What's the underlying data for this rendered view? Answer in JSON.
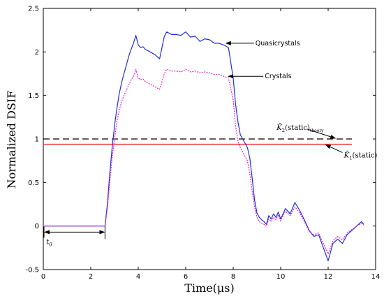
{
  "chart_data": {
    "type": "line",
    "title": "",
    "xlabel": "Time(μs)",
    "ylabel": "Normalized DSIF",
    "xlim": [
      0,
      14
    ],
    "ylim": [
      -0.5,
      2.5
    ],
    "x_ticks": [
      0,
      2,
      4,
      6,
      8,
      10,
      12,
      14
    ],
    "y_ticks": [
      -0.5,
      0,
      0.5,
      1,
      1.5,
      2,
      2.5
    ],
    "x_tick_labels": [
      "0",
      "2",
      "4",
      "6",
      "8",
      "10",
      "12",
      "14"
    ],
    "y_tick_labels": [
      "-0.5",
      "0",
      "0.5",
      "1",
      "1.5",
      "2",
      "2.5"
    ],
    "grid": false,
    "series": [
      {
        "name": "Quasicrystals",
        "color": "#1f2fd6",
        "style": "solid",
        "x": [
          0,
          2.6,
          2.7,
          2.8,
          2.9,
          3.0,
          3.1,
          3.2,
          3.3,
          3.4,
          3.5,
          3.6,
          3.7,
          3.8,
          3.9,
          4.0,
          4.1,
          4.2,
          4.3,
          4.5,
          4.7,
          4.9,
          5.0,
          5.1,
          5.2,
          5.4,
          5.6,
          5.8,
          6.0,
          6.2,
          6.4,
          6.6,
          6.8,
          7.0,
          7.2,
          7.4,
          7.6,
          7.8,
          8.0,
          8.1,
          8.2,
          8.3,
          8.4,
          8.5,
          8.6,
          8.7,
          8.8,
          8.9,
          9.0,
          9.1,
          9.2,
          9.3,
          9.4,
          9.5,
          9.6,
          9.7,
          9.8,
          9.9,
          10.0,
          10.2,
          10.4,
          10.6,
          10.8,
          11.0,
          11.2,
          11.4,
          11.6,
          11.8,
          12.0,
          12.2,
          12.4,
          12.6,
          12.8,
          13.0,
          13.2,
          13.4,
          13.5
        ],
        "values": [
          0,
          0,
          0.25,
          0.6,
          0.9,
          1.15,
          1.35,
          1.52,
          1.65,
          1.75,
          1.85,
          1.95,
          2.03,
          2.1,
          2.19,
          2.08,
          2.05,
          2.06,
          2.03,
          2.0,
          1.97,
          1.92,
          2.05,
          2.18,
          2.23,
          2.2,
          2.2,
          2.19,
          2.23,
          2.17,
          2.18,
          2.12,
          2.15,
          2.14,
          2.1,
          2.1,
          2.08,
          2.05,
          1.7,
          1.4,
          1.2,
          1.05,
          1.0,
          0.95,
          0.9,
          0.78,
          0.55,
          0.3,
          0.15,
          0.1,
          0.07,
          0.05,
          0.02,
          0.12,
          0.08,
          0.14,
          0.1,
          0.16,
          0.08,
          0.2,
          0.14,
          0.27,
          0.18,
          0.07,
          -0.05,
          -0.12,
          -0.1,
          -0.25,
          -0.4,
          -0.2,
          -0.15,
          -0.2,
          -0.1,
          -0.05,
          0.0,
          0.05,
          0.02
        ]
      },
      {
        "name": "Crystals",
        "color": "#e020d8",
        "style": "dotted",
        "x": [
          0,
          2.6,
          2.7,
          2.8,
          2.9,
          3.0,
          3.1,
          3.2,
          3.3,
          3.4,
          3.5,
          3.6,
          3.7,
          3.8,
          3.9,
          4.0,
          4.1,
          4.2,
          4.3,
          4.5,
          4.7,
          4.9,
          5.0,
          5.1,
          5.2,
          5.4,
          5.6,
          5.8,
          6.0,
          6.2,
          6.4,
          6.6,
          6.8,
          7.0,
          7.2,
          7.4,
          7.6,
          7.8,
          8.0,
          8.1,
          8.2,
          8.3,
          8.4,
          8.5,
          8.6,
          8.7,
          8.8,
          8.9,
          9.0,
          9.1,
          9.2,
          9.3,
          9.4,
          9.5,
          9.6,
          9.7,
          9.8,
          9.9,
          10.0,
          10.2,
          10.4,
          10.6,
          10.8,
          11.0,
          11.2,
          11.4,
          11.6,
          11.8,
          12.0,
          12.2,
          12.4,
          12.6,
          12.8,
          13.0,
          13.2,
          13.4,
          13.5
        ],
        "values": [
          0,
          0,
          0.2,
          0.5,
          0.78,
          1.0,
          1.2,
          1.33,
          1.43,
          1.5,
          1.56,
          1.62,
          1.68,
          1.72,
          1.8,
          1.7,
          1.68,
          1.69,
          1.66,
          1.63,
          1.6,
          1.57,
          1.66,
          1.75,
          1.8,
          1.78,
          1.78,
          1.77,
          1.8,
          1.77,
          1.78,
          1.76,
          1.77,
          1.76,
          1.74,
          1.74,
          1.72,
          1.7,
          1.45,
          1.15,
          0.98,
          0.9,
          0.85,
          0.8,
          0.75,
          0.6,
          0.4,
          0.22,
          0.1,
          0.05,
          0.03,
          0.02,
          0.0,
          0.08,
          0.05,
          0.1,
          0.07,
          0.13,
          0.06,
          0.17,
          0.12,
          0.22,
          0.15,
          0.05,
          -0.06,
          -0.1,
          -0.08,
          -0.2,
          -0.32,
          -0.17,
          -0.12,
          -0.16,
          -0.08,
          -0.04,
          0.0,
          0.03,
          0.01
        ]
      }
    ],
    "reference_lines": [
      {
        "y": 1.0,
        "x_start": 0,
        "x_end": 13.0,
        "color": "#000000",
        "style": "dashed"
      },
      {
        "y": 0.94,
        "x_start": 0,
        "x_end": 13.0,
        "color": "#ee2222",
        "style": "solid"
      }
    ],
    "annotations": {
      "quasicrystals": {
        "text": "Quasicrystals",
        "arrow_to": [
          7.7,
          2.1
        ]
      },
      "crystals": {
        "text": "Crystals",
        "arrow_to": [
          7.8,
          1.72
        ]
      },
      "k2_label": {
        "symbol": "K̄",
        "sub": "2",
        "text": "(static)",
        "subscript_tail": "theory",
        "arrow_to": [
          12.3,
          1.0
        ]
      },
      "k1_label": {
        "symbol": "K̄",
        "sub": "1",
        "text": "(static)",
        "arrow_to": [
          11.9,
          0.94
        ]
      },
      "t0": {
        "text": "t",
        "sub": "0",
        "from_x": 0,
        "to_x": 2.6,
        "y": -0.07
      }
    }
  }
}
